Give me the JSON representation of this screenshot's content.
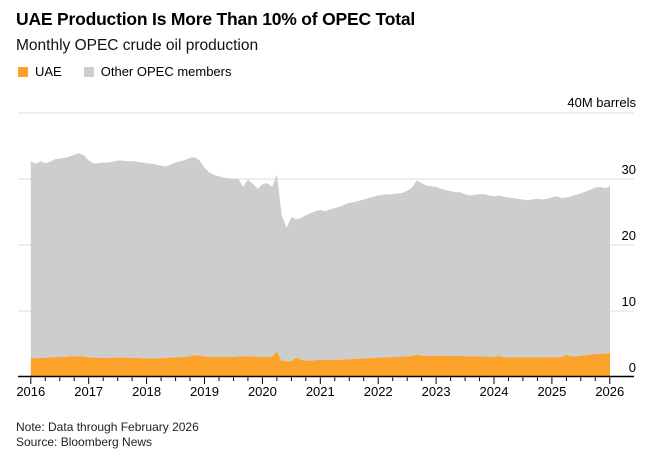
{
  "header": {
    "title": "UAE Production Is More Than 10% of OPEC Total",
    "subtitle": "Monthly OPEC crude oil production"
  },
  "legend": {
    "position": "top-left",
    "items": [
      {
        "label": "UAE",
        "color": "#FCA22B"
      },
      {
        "label": "Other OPEC members",
        "color": "#CDCDCD"
      }
    ]
  },
  "footer": {
    "note": "Note: Data through February 2026",
    "source": "Source: Bloomberg News"
  },
  "chart_data": {
    "type": "area",
    "stacked": true,
    "title": "UAE Production Is More Than 10% of OPEC Total",
    "subtitle": "Monthly OPEC crude oil production",
    "unit_label": "40M barrels",
    "grid": true,
    "legend_position": "top-left",
    "x_axis": {
      "start_year": 2016,
      "step_months": 1,
      "end_label": "2026",
      "tick_years": [
        2016,
        2017,
        2018,
        2019,
        2020,
        2021,
        2022,
        2023,
        2024,
        2025,
        2026
      ],
      "minor_tick_interval_years": 0.25
    },
    "y_axis": {
      "ylim": [
        0,
        40
      ],
      "gridline_values": [
        10,
        20,
        30,
        40
      ],
      "tick_values": [
        0,
        10,
        20,
        30
      ],
      "tick_labels": [
        "0",
        "10",
        "20",
        "30"
      ]
    },
    "colors": {
      "uae": "#FCA22B",
      "others": "#CDCDCD",
      "gridline": "#DEDEDE",
      "axis": "#000000",
      "text": "#000000"
    },
    "series": [
      {
        "name": "UAE",
        "color": "#FCA22B",
        "values": [
          2.85,
          2.85,
          2.9,
          2.9,
          2.95,
          3.0,
          3.05,
          3.05,
          3.1,
          3.1,
          3.15,
          3.1,
          3.0,
          2.95,
          2.9,
          2.9,
          2.9,
          2.9,
          2.95,
          2.95,
          2.9,
          2.9,
          2.9,
          2.85,
          2.85,
          2.85,
          2.85,
          2.85,
          2.9,
          2.95,
          3.0,
          3.0,
          3.05,
          3.15,
          3.3,
          3.25,
          3.1,
          3.05,
          3.05,
          3.05,
          3.05,
          3.05,
          3.05,
          3.1,
          3.1,
          3.1,
          3.1,
          3.05,
          3.05,
          3.0,
          3.1,
          3.8,
          2.45,
          2.4,
          2.4,
          2.95,
          2.6,
          2.45,
          2.5,
          2.55,
          2.6,
          2.6,
          2.6,
          2.6,
          2.6,
          2.65,
          2.7,
          2.75,
          2.8,
          2.8,
          2.85,
          2.9,
          2.95,
          2.95,
          3.0,
          3.0,
          3.05,
          3.1,
          3.1,
          3.2,
          3.4,
          3.2,
          3.2,
          3.2,
          3.2,
          3.2,
          3.2,
          3.2,
          3.15,
          3.2,
          3.1,
          3.1,
          3.1,
          3.1,
          3.1,
          3.05,
          3.0,
          3.2,
          3.0,
          2.95,
          2.95,
          2.95,
          2.95,
          2.95,
          2.95,
          2.95,
          2.95,
          2.95,
          2.95,
          3.0,
          3.0,
          3.35,
          3.1,
          3.15,
          3.25,
          3.3,
          3.4,
          3.45,
          3.5,
          3.55,
          3.6,
          3.75
        ]
      },
      {
        "name": "Other OPEC members",
        "color": "#CDCDCD",
        "values": [
          29.85,
          29.45,
          29.8,
          29.5,
          29.65,
          30.0,
          30.05,
          30.15,
          30.3,
          30.6,
          30.75,
          30.5,
          29.8,
          29.45,
          29.5,
          29.6,
          29.6,
          29.7,
          29.85,
          29.85,
          29.8,
          29.8,
          29.7,
          29.65,
          29.55,
          29.45,
          29.35,
          29.15,
          29.0,
          29.25,
          29.5,
          29.7,
          29.85,
          30.05,
          30.0,
          29.55,
          28.6,
          27.95,
          27.55,
          27.35,
          27.15,
          27.05,
          26.95,
          26.9,
          25.7,
          26.8,
          26.2,
          25.45,
          26.15,
          26.4,
          25.7,
          26.9,
          22.05,
          20.2,
          21.8,
          20.95,
          21.5,
          22.05,
          22.3,
          22.55,
          22.7,
          22.5,
          22.8,
          23.0,
          23.2,
          23.45,
          23.7,
          23.75,
          23.9,
          24.1,
          24.25,
          24.4,
          24.55,
          24.65,
          24.7,
          24.7,
          24.75,
          24.8,
          25.1,
          25.5,
          26.4,
          26.2,
          25.8,
          25.7,
          25.6,
          25.3,
          25.1,
          25.0,
          24.85,
          24.8,
          24.6,
          24.4,
          24.5,
          24.6,
          24.6,
          24.45,
          24.4,
          24.3,
          24.3,
          24.25,
          24.15,
          24.05,
          23.95,
          23.85,
          23.95,
          24.05,
          23.95,
          24.05,
          24.25,
          24.4,
          24.1,
          23.85,
          24.3,
          24.45,
          24.55,
          24.8,
          25.0,
          25.25,
          25.3,
          25.05,
          25.3,
          25.75
        ]
      }
    ]
  }
}
